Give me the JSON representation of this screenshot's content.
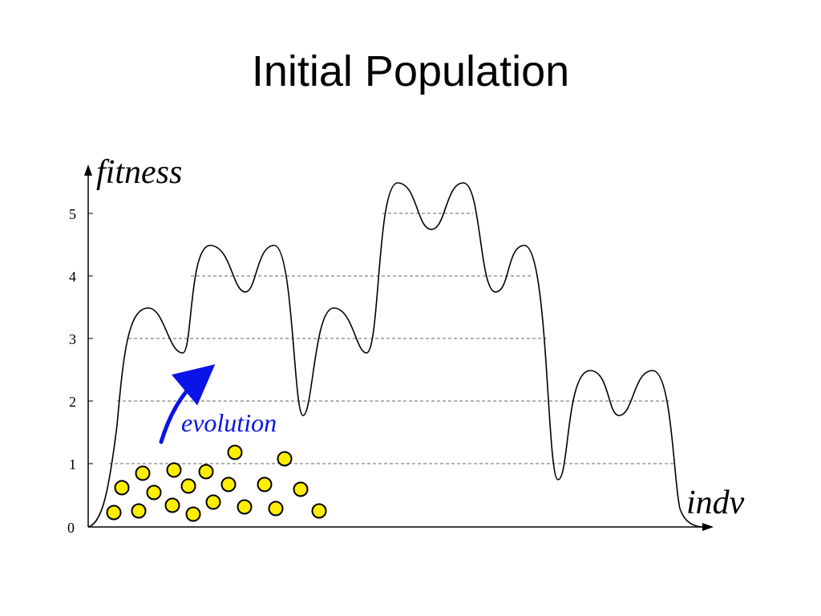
{
  "title": "Initial Population",
  "chart_data": {
    "type": "line",
    "ylabel": "fitness",
    "xlabel": "indv",
    "y_ticks": [
      "0",
      "1",
      "2",
      "3",
      "4",
      "5"
    ],
    "ylim": [
      0,
      5.5
    ],
    "reference_levels": [
      1,
      2,
      3,
      4,
      5
    ],
    "annotation": "evolution",
    "colors": {
      "curve": "#000000",
      "population": "#ffee00",
      "arrow": "#0a14e6"
    }
  }
}
